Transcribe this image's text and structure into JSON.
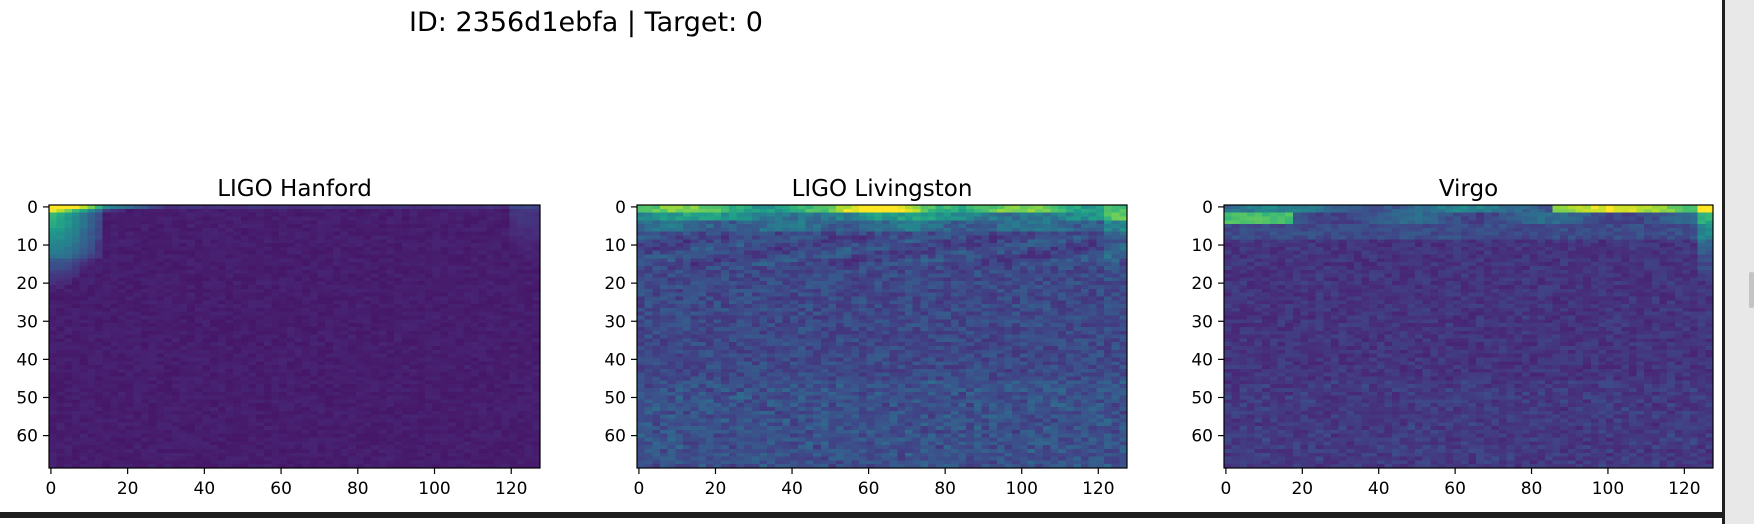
{
  "figure": {
    "suptitle": "ID: 2356d1ebfa | Target: 0",
    "colormap": "viridis",
    "colormap_stops": [
      "#440154",
      "#482878",
      "#3e4a89",
      "#31688e",
      "#26828e",
      "#1f9e89",
      "#35b779",
      "#6ece58",
      "#b5de2b",
      "#fde725"
    ]
  },
  "chart_data": [
    {
      "type": "heatmap",
      "title": "LIGO Hanford",
      "xlabel": "",
      "ylabel": "",
      "xlim": [
        0,
        128
      ],
      "ylim": [
        69,
        0
      ],
      "xticks": [
        0,
        20,
        40,
        60,
        80,
        100,
        120
      ],
      "yticks": [
        0,
        10,
        20,
        30,
        40,
        50,
        60
      ],
      "colormap": "viridis",
      "description_values": "low-intensity field overall; brightest at rows 0-2, columns 0-10, fading to background by row ~25",
      "peak_region": {
        "rows": [
          0,
          3
        ],
        "cols": [
          0,
          12
        ],
        "value": 0.85
      },
      "background_value": 0.06
    },
    {
      "type": "heatmap",
      "title": "LIGO Livingston",
      "xlabel": "",
      "ylabel": "",
      "xlim": [
        0,
        128
      ],
      "ylim": [
        69,
        0
      ],
      "xticks": [
        0,
        20,
        40,
        60,
        80,
        100,
        120
      ],
      "yticks": [
        0,
        10,
        20,
        30,
        40,
        50,
        60
      ],
      "colormap": "viridis",
      "description_values": "bright band along rows 0-3 across all columns, peak near column 65; textured noise below",
      "peak_region": {
        "rows": [
          0,
          3
        ],
        "cols": [
          55,
          80
        ],
        "value": 0.95
      },
      "background_value": 0.15
    },
    {
      "type": "heatmap",
      "title": "Virgo",
      "xlabel": "",
      "ylabel": "",
      "xlim": [
        0,
        128
      ],
      "ylim": [
        69,
        0
      ],
      "xticks": [
        0,
        20,
        40,
        60,
        80,
        100,
        120
      ],
      "yticks": [
        0,
        10,
        20,
        30,
        40,
        50,
        60
      ],
      "colormap": "viridis",
      "description_values": "bright streaks on rows 1-4 near columns 0-15 and 85-128; brighter column edge near 125",
      "peak_region": {
        "rows": [
          0,
          3
        ],
        "cols": [
          90,
          128
        ],
        "value": 0.92
      },
      "background_value": 0.1
    }
  ]
}
